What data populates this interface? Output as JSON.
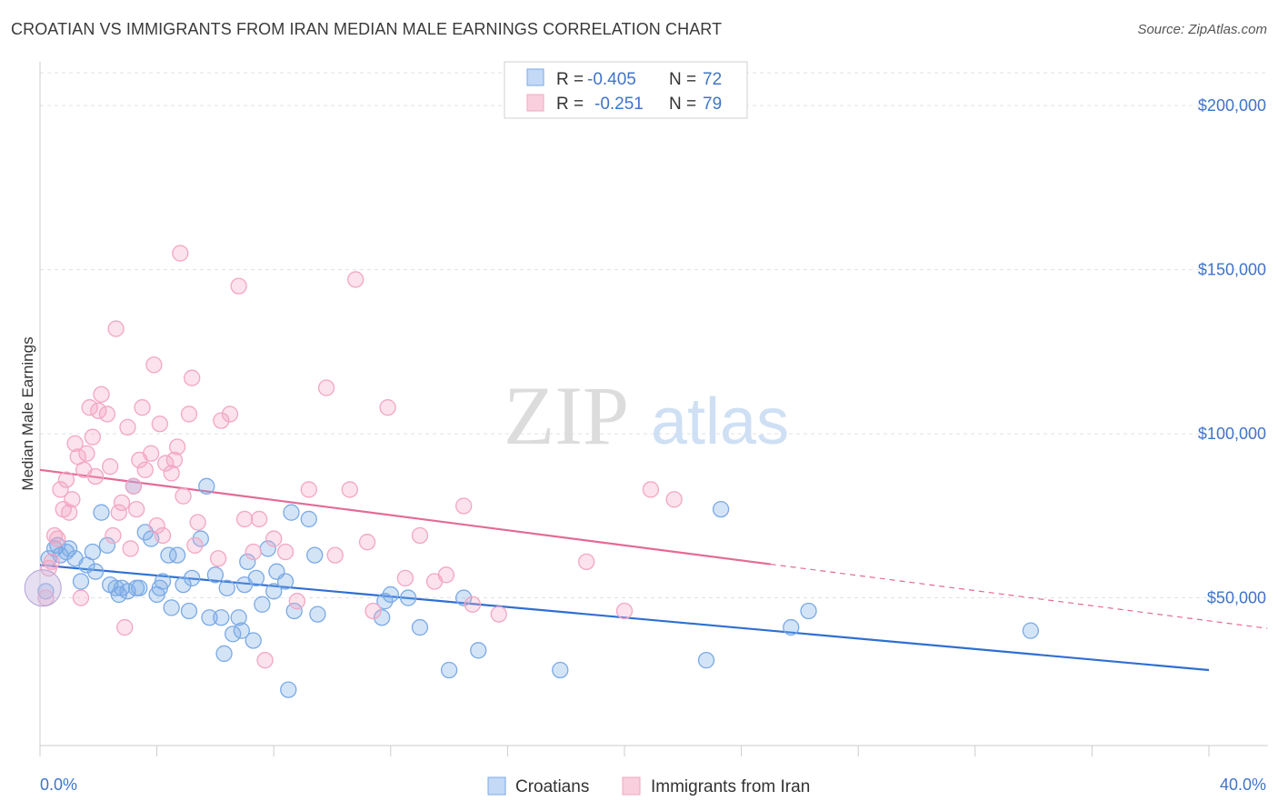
{
  "title": "CROATIAN VS IMMIGRANTS FROM IRAN MEDIAN MALE EARNINGS CORRELATION CHART",
  "source": "Source: ZipAtlas.com",
  "watermark": {
    "zip": "ZIP",
    "atlas": "atlas"
  },
  "legend_stats": [
    {
      "r_label": "R =",
      "r_value": "-0.405",
      "n_label": "N =",
      "n_value": "72"
    },
    {
      "r_label": "R =",
      "r_value": "-0.251",
      "n_label": "N =",
      "n_value": "79"
    }
  ],
  "chart_data": {
    "type": "scatter",
    "xlabel": "",
    "ylabel": "Median Male Earnings",
    "xlim": [
      0,
      40
    ],
    "ylim": [
      5000,
      210000
    ],
    "x_tick_labels": [
      "0.0%",
      "40.0%"
    ],
    "y_ticks": [
      50000,
      100000,
      150000,
      200000
    ],
    "y_tick_labels": [
      "$50,000",
      "$100,000",
      "$150,000",
      "$200,000"
    ],
    "grid": true,
    "legend_position": "bottom-center",
    "series": [
      {
        "name": "Croatians",
        "color": "#7aaae6",
        "line_color": "#2f6fd1",
        "trend": {
          "x": [
            0,
            40
          ],
          "y": [
            60000,
            28000
          ],
          "dashed_from": null
        },
        "points": [
          [
            0.2,
            52000
          ],
          [
            0.3,
            62000
          ],
          [
            0.5,
            65000
          ],
          [
            0.6,
            66000
          ],
          [
            0.7,
            63000
          ],
          [
            0.9,
            64000
          ],
          [
            1.0,
            65000
          ],
          [
            1.2,
            62000
          ],
          [
            1.4,
            55000
          ],
          [
            1.6,
            60000
          ],
          [
            1.8,
            64000
          ],
          [
            1.9,
            58000
          ],
          [
            2.1,
            76000
          ],
          [
            2.3,
            66000
          ],
          [
            2.4,
            54000
          ],
          [
            2.6,
            53000
          ],
          [
            2.7,
            51000
          ],
          [
            2.8,
            53000
          ],
          [
            3.0,
            52000
          ],
          [
            3.2,
            84000
          ],
          [
            3.4,
            53000
          ],
          [
            3.6,
            70000
          ],
          [
            3.8,
            68000
          ],
          [
            4.0,
            51000
          ],
          [
            4.1,
            53000
          ],
          [
            4.2,
            55000
          ],
          [
            4.4,
            63000
          ],
          [
            4.5,
            47000
          ],
          [
            4.7,
            63000
          ],
          [
            4.9,
            54000
          ],
          [
            5.1,
            46000
          ],
          [
            5.2,
            56000
          ],
          [
            5.5,
            68000
          ],
          [
            5.7,
            84000
          ],
          [
            5.8,
            44000
          ],
          [
            6.0,
            57000
          ],
          [
            6.2,
            44000
          ],
          [
            6.4,
            53000
          ],
          [
            6.6,
            39000
          ],
          [
            6.8,
            44000
          ],
          [
            6.9,
            40000
          ],
          [
            7.0,
            54000
          ],
          [
            7.1,
            61000
          ],
          [
            7.3,
            37000
          ],
          [
            7.4,
            56000
          ],
          [
            7.6,
            48000
          ],
          [
            7.8,
            65000
          ],
          [
            8.0,
            52000
          ],
          [
            8.1,
            58000
          ],
          [
            8.4,
            55000
          ],
          [
            8.6,
            76000
          ],
          [
            8.7,
            46000
          ],
          [
            9.2,
            74000
          ],
          [
            9.4,
            63000
          ],
          [
            9.5,
            45000
          ],
          [
            11.7,
            44000
          ],
          [
            11.8,
            49000
          ],
          [
            12.0,
            51000
          ],
          [
            12.6,
            50000
          ],
          [
            13.0,
            41000
          ],
          [
            14.0,
            28000
          ],
          [
            14.5,
            50000
          ],
          [
            15.0,
            34000
          ],
          [
            17.8,
            28000
          ],
          [
            22.8,
            31000
          ],
          [
            23.3,
            77000
          ],
          [
            25.7,
            41000
          ],
          [
            26.3,
            46000
          ],
          [
            33.9,
            40000
          ],
          [
            6.3,
            33000
          ],
          [
            8.5,
            22000
          ],
          [
            3.3,
            53000
          ]
        ]
      },
      {
        "name": "Immigrants from Iran",
        "color": "#f3a6c3",
        "line_color": "#e36b97",
        "trend": {
          "x": [
            0,
            40
          ],
          "y": [
            89000,
            43000
          ],
          "dashed_from": 25
        },
        "points": [
          [
            0.2,
            50000
          ],
          [
            0.3,
            59000
          ],
          [
            0.4,
            61000
          ],
          [
            0.5,
            69000
          ],
          [
            0.6,
            68000
          ],
          [
            0.7,
            83000
          ],
          [
            0.8,
            77000
          ],
          [
            0.9,
            86000
          ],
          [
            1.0,
            76000
          ],
          [
            1.1,
            80000
          ],
          [
            1.2,
            97000
          ],
          [
            1.3,
            93000
          ],
          [
            1.4,
            50000
          ],
          [
            1.5,
            89000
          ],
          [
            1.6,
            94000
          ],
          [
            1.7,
            108000
          ],
          [
            1.8,
            99000
          ],
          [
            1.9,
            87000
          ],
          [
            2.0,
            107000
          ],
          [
            2.1,
            112000
          ],
          [
            2.3,
            106000
          ],
          [
            2.4,
            90000
          ],
          [
            2.5,
            69000
          ],
          [
            2.6,
            132000
          ],
          [
            2.7,
            76000
          ],
          [
            2.8,
            79000
          ],
          [
            2.9,
            41000
          ],
          [
            3.0,
            102000
          ],
          [
            3.1,
            65000
          ],
          [
            3.2,
            84000
          ],
          [
            3.3,
            77000
          ],
          [
            3.4,
            92000
          ],
          [
            3.5,
            108000
          ],
          [
            3.6,
            89000
          ],
          [
            3.8,
            94000
          ],
          [
            3.9,
            121000
          ],
          [
            4.0,
            72000
          ],
          [
            4.1,
            103000
          ],
          [
            4.2,
            69000
          ],
          [
            4.3,
            91000
          ],
          [
            4.5,
            88000
          ],
          [
            4.6,
            92000
          ],
          [
            4.7,
            96000
          ],
          [
            4.8,
            155000
          ],
          [
            4.9,
            81000
          ],
          [
            5.1,
            106000
          ],
          [
            5.2,
            117000
          ],
          [
            5.3,
            66000
          ],
          [
            5.4,
            73000
          ],
          [
            6.1,
            62000
          ],
          [
            6.2,
            104000
          ],
          [
            6.5,
            106000
          ],
          [
            6.8,
            145000
          ],
          [
            7.0,
            74000
          ],
          [
            7.3,
            64000
          ],
          [
            7.5,
            74000
          ],
          [
            7.7,
            31000
          ],
          [
            8.0,
            68000
          ],
          [
            8.4,
            64000
          ],
          [
            8.8,
            49000
          ],
          [
            9.2,
            83000
          ],
          [
            9.8,
            114000
          ],
          [
            10.1,
            63000
          ],
          [
            10.6,
            83000
          ],
          [
            11.2,
            67000
          ],
          [
            11.4,
            46000
          ],
          [
            11.9,
            108000
          ],
          [
            12.5,
            56000
          ],
          [
            13.0,
            69000
          ],
          [
            13.5,
            55000
          ],
          [
            13.9,
            57000
          ],
          [
            14.5,
            78000
          ],
          [
            14.8,
            48000
          ],
          [
            15.7,
            45000
          ],
          [
            18.7,
            61000
          ],
          [
            20.0,
            46000
          ],
          [
            20.9,
            83000
          ],
          [
            21.7,
            80000
          ],
          [
            10.8,
            147000
          ]
        ]
      }
    ]
  }
}
